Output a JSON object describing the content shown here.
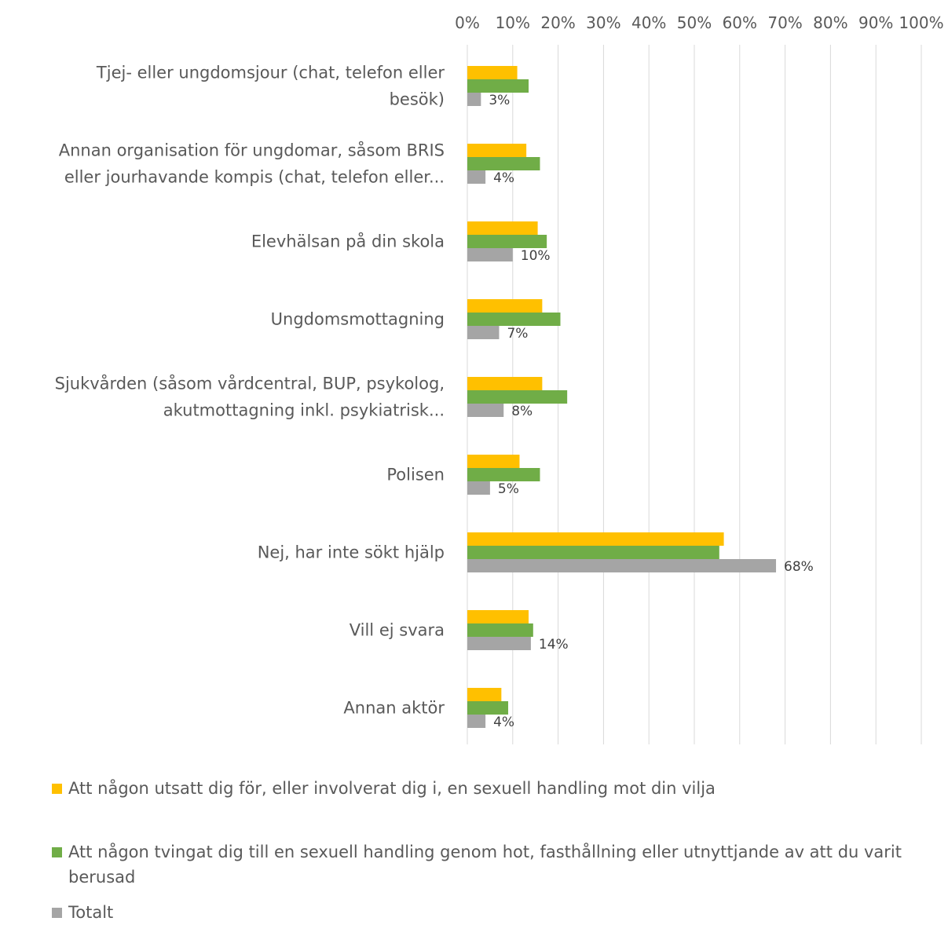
{
  "chart_data": {
    "type": "bar",
    "orientation": "horizontal",
    "categories": [
      [
        "Tjej- eller ungdomsjour (chat, telefon eller",
        "besök)"
      ],
      [
        "Annan organisation för ungdomar, såsom BRIS",
        "eller jourhavande kompis (chat, telefon eller..."
      ],
      [
        "Elevhälsan på din skola"
      ],
      [
        "Ungdomsmottagning"
      ],
      [
        "Sjukvården (såsom vårdcentral, BUP, psykolog,",
        "akutmottagning inkl. psykiatrisk..."
      ],
      [
        "Polisen"
      ],
      [
        "Nej, har inte sökt hjälp"
      ],
      [
        "Vill ej svara"
      ],
      [
        "Annan aktör"
      ]
    ],
    "series": [
      {
        "name": "Att någon utsatt dig för, eller involverat dig i, en sexuell handling mot din vilja",
        "color": "#FFC000",
        "values": [
          11,
          13,
          15.5,
          16.5,
          16.5,
          11.5,
          56.5,
          13.5,
          7.5
        ]
      },
      {
        "name": "Att någon tvingat dig till en sexuell handling genom hot, fasthållning eller utnyttjande av att du varit berusad",
        "color": "#70AD47",
        "values": [
          13.5,
          16,
          17.5,
          20.5,
          22,
          16,
          55.5,
          14.5,
          9
        ]
      },
      {
        "name": "Totalt",
        "color": "#A5A5A5",
        "values": [
          3,
          4,
          10,
          7,
          8,
          5,
          68,
          14,
          4
        ],
        "data_labels": [
          "3%",
          "4%",
          "10%",
          "7%",
          "8%",
          "5%",
          "68%",
          "14%",
          "4%"
        ]
      }
    ],
    "x_ticks": [
      "0%",
      "10%",
      "20%",
      "30%",
      "40%",
      "50%",
      "60%",
      "70%",
      "80%",
      "90%",
      "100%"
    ],
    "xlim": [
      0,
      100
    ],
    "axis_position": "top",
    "grid": true,
    "legend_position": "bottom"
  }
}
